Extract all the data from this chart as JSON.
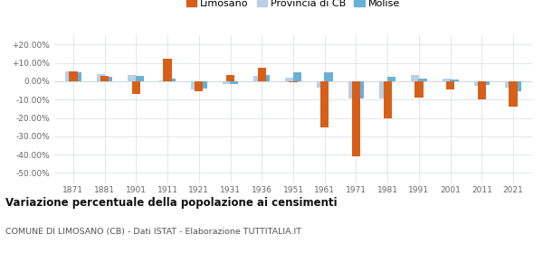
{
  "years": [
    1871,
    1881,
    1901,
    1911,
    1921,
    1931,
    1936,
    1951,
    1961,
    1971,
    1981,
    1991,
    2001,
    2011,
    2021
  ],
  "limosano": [
    5.5,
    3.0,
    -7.0,
    12.5,
    -5.5,
    3.5,
    7.5,
    -0.5,
    -25.0,
    -41.0,
    -20.0,
    -9.0,
    -4.5,
    -10.0,
    -14.0
  ],
  "provincia_cb": [
    5.5,
    4.0,
    3.5,
    0.5,
    -4.5,
    -1.5,
    3.0,
    2.0,
    -3.5,
    -9.5,
    -9.5,
    3.5,
    1.5,
    -2.5,
    -3.5
  ],
  "molise": [
    5.0,
    2.5,
    3.0,
    1.5,
    -4.0,
    -1.5,
    3.5,
    5.0,
    5.0,
    -9.5,
    2.5,
    1.5,
    1.0,
    -2.0,
    -5.5
  ],
  "color_limosano": "#d6601a",
  "color_provincia": "#b8d0e8",
  "color_molise": "#6ab0d4",
  "title": "Variazione percentuale della popolazione ai censimenti",
  "subtitle": "COMUNE DI LIMOSANO (CB) - Dati ISTAT - Elaborazione TUTTITALIA.IT",
  "ytick_vals": [
    20,
    10,
    0,
    -10,
    -20,
    -30,
    -40,
    -50
  ],
  "ytick_labels": [
    "+20.00%",
    "+10.00%",
    "0.00%",
    "-10.00%",
    "-20.00%",
    "-30.00%",
    "-40.00%",
    "-50.00%"
  ],
  "ylim": [
    -55,
    25
  ],
  "background_color": "#ffffff",
  "legend_labels": [
    "Limosano",
    "Provincia di CB",
    "Molise"
  ],
  "bar_width": 0.27
}
